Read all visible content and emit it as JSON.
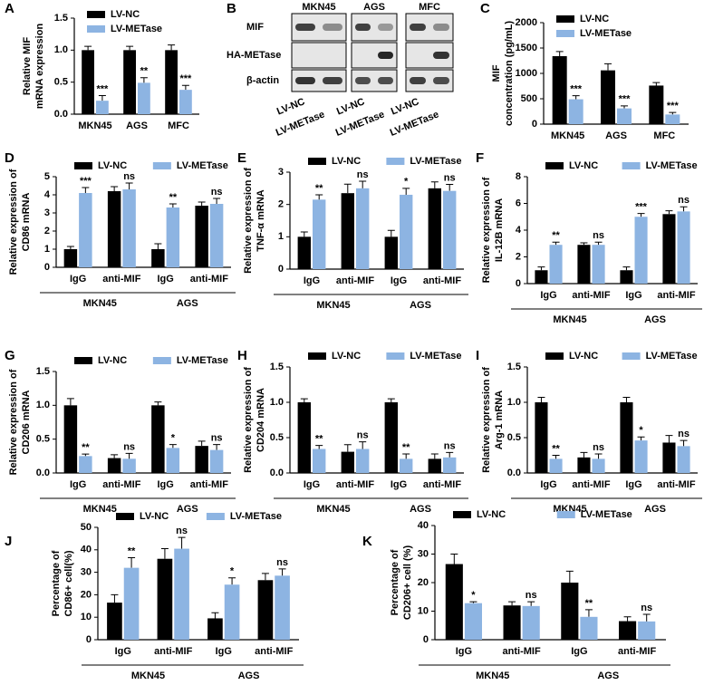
{
  "blot": {
    "label": "B",
    "proteins": [
      "MIF",
      "HA-METase",
      "β-actin"
    ],
    "cell_lines": [
      "MKN45",
      "AGS",
      "MFC"
    ],
    "lanes": [
      "LV-NC",
      "LV-METase"
    ]
  },
  "chart_data": [
    {
      "type": "bar",
      "label": "A",
      "ylabel": [
        "Relative MIF",
        "mRNA expression"
      ],
      "categories": [
        "MKN45",
        "AGS",
        "MFC"
      ],
      "legend": "upper left",
      "series": [
        {
          "name": "LV-NC",
          "color": "#000000",
          "values": [
            1.0,
            1.0,
            1.0
          ],
          "errors": [
            0.06,
            0.06,
            0.08
          ]
        },
        {
          "name": "LV-METase",
          "color": "#8db4e2",
          "values": [
            0.21,
            0.49,
            0.38
          ],
          "errors": [
            0.08,
            0.08,
            0.07
          ]
        }
      ],
      "annotations": [
        "***",
        "**",
        "***"
      ],
      "ylim": [
        0,
        1.5
      ],
      "yticks": [
        {
          "value": 0,
          "label": "0.0"
        },
        0.5,
        {
          "value": 1,
          "label": "1.0"
        },
        1.5
      ]
    },
    {
      "type": "bar",
      "label": "C",
      "ylabel": [
        "MIF",
        "concentration (pg/mL)"
      ],
      "categories": [
        "MKN45",
        "AGS",
        "MFC"
      ],
      "legend": "upper left",
      "series": [
        {
          "name": "LV-NC",
          "color": "#000000",
          "values": [
            1340,
            1060,
            760
          ],
          "errors": [
            90,
            130,
            60
          ]
        },
        {
          "name": "LV-METase",
          "color": "#8db4e2",
          "values": [
            490,
            310,
            190
          ],
          "errors": [
            70,
            50,
            40
          ]
        }
      ],
      "annotations": [
        "***",
        "***",
        "***"
      ],
      "ylim": [
        0,
        2000
      ],
      "yticks": [
        0,
        500,
        1000,
        1500,
        2000
      ]
    },
    {
      "type": "bar",
      "label": "D",
      "ylabel": [
        "Relative expression of",
        "CD86 mRNA"
      ],
      "categories": [
        "IgG",
        "anti-MIF",
        "IgG",
        "anti-MIF"
      ],
      "groups": [
        "MKN45",
        "AGS"
      ],
      "legend": "top",
      "series": [
        {
          "name": "LV-NC",
          "color": "#000000",
          "values": [
            1.0,
            4.2,
            1.0,
            3.4
          ],
          "errors": [
            0.15,
            0.25,
            0.3,
            0.2
          ]
        },
        {
          "name": "LV-METase",
          "color": "#8db4e2",
          "values": [
            4.1,
            4.3,
            3.3,
            3.5
          ],
          "errors": [
            0.3,
            0.35,
            0.2,
            0.3
          ]
        }
      ],
      "annotations": [
        "***",
        "ns",
        "**",
        "ns"
      ],
      "ylim": [
        0,
        5
      ],
      "yticks": [
        0,
        1,
        2,
        3,
        4,
        5
      ]
    },
    {
      "type": "bar",
      "label": "E",
      "ylabel": [
        "Relative expression of",
        "TNF-α mRNA"
      ],
      "categories": [
        "IgG",
        "anti-MIF",
        "IgG",
        "anti-MIF"
      ],
      "groups": [
        "MKN45",
        "AGS"
      ],
      "legend": "top",
      "series": [
        {
          "name": "LV-NC",
          "color": "#000000",
          "values": [
            1.0,
            2.35,
            1.0,
            2.5
          ],
          "errors": [
            0.15,
            0.28,
            0.2,
            0.2
          ]
        },
        {
          "name": "LV-METase",
          "color": "#8db4e2",
          "values": [
            2.15,
            2.5,
            2.3,
            2.42
          ],
          "errors": [
            0.15,
            0.22,
            0.2,
            0.2
          ]
        }
      ],
      "annotations": [
        "**",
        "ns",
        "*",
        "ns"
      ],
      "ylim": [
        0,
        3
      ],
      "yticks": [
        0,
        1,
        2,
        3
      ]
    },
    {
      "type": "bar",
      "label": "F",
      "ylabel": [
        "Relative expression of",
        "IL-12B mRNA"
      ],
      "categories": [
        "IgG",
        "anti-MIF",
        "IgG",
        "anti-MIF"
      ],
      "groups": [
        "MKN45",
        "AGS"
      ],
      "legend": "top",
      "series": [
        {
          "name": "LV-NC",
          "color": "#000000",
          "values": [
            1.0,
            2.9,
            1.0,
            5.2
          ],
          "errors": [
            0.25,
            0.15,
            0.25,
            0.25
          ]
        },
        {
          "name": "LV-METase",
          "color": "#8db4e2",
          "values": [
            2.9,
            2.9,
            5.0,
            5.4
          ],
          "errors": [
            0.2,
            0.2,
            0.25,
            0.35
          ]
        }
      ],
      "annotations": [
        "**",
        "ns",
        "***",
        "ns"
      ],
      "ylim": [
        0,
        8
      ],
      "yticks": [
        0,
        2,
        4,
        6,
        8
      ]
    },
    {
      "type": "bar",
      "label": "G",
      "ylabel": [
        "Relative expression of",
        "CD206 mRNA"
      ],
      "categories": [
        "IgG",
        "anti-MIF",
        "IgG",
        "anti-MIF"
      ],
      "groups": [
        "MKN45",
        "AGS"
      ],
      "legend": "top",
      "series": [
        {
          "name": "LV-NC",
          "color": "#000000",
          "values": [
            1.0,
            0.22,
            1.0,
            0.4
          ],
          "errors": [
            0.1,
            0.05,
            0.05,
            0.07
          ]
        },
        {
          "name": "LV-METase",
          "color": "#8db4e2",
          "values": [
            0.25,
            0.21,
            0.37,
            0.34
          ],
          "errors": [
            0.03,
            0.08,
            0.05,
            0.08
          ]
        }
      ],
      "annotations": [
        "**",
        "ns",
        "*",
        "ns"
      ],
      "ylim": [
        0,
        1.5
      ],
      "yticks": [
        {
          "value": 0,
          "label": "0.0"
        },
        0.5,
        {
          "value": 1,
          "label": "1.0"
        },
        1.5
      ]
    },
    {
      "type": "bar",
      "label": "H",
      "ylabel": [
        "Relative expression of",
        "CD204 mRNA"
      ],
      "categories": [
        "IgG",
        "anti-MIF",
        "IgG",
        "anti-MIF"
      ],
      "groups": [
        "MKN45",
        "AGS"
      ],
      "legend": "top",
      "series": [
        {
          "name": "LV-NC",
          "color": "#000000",
          "values": [
            1.0,
            0.3,
            1.0,
            0.2
          ],
          "errors": [
            0.05,
            0.1,
            0.05,
            0.07
          ]
        },
        {
          "name": "LV-METase",
          "color": "#8db4e2",
          "values": [
            0.34,
            0.34,
            0.2,
            0.22
          ],
          "errors": [
            0.05,
            0.1,
            0.07,
            0.07
          ]
        }
      ],
      "annotations": [
        "**",
        "ns",
        "**",
        "ns"
      ],
      "ylim": [
        0,
        1.5
      ],
      "yticks": [
        {
          "value": 0,
          "label": "0.0"
        },
        0.5,
        {
          "value": 1,
          "label": "1.0"
        },
        1.5
      ]
    },
    {
      "type": "bar",
      "label": "I",
      "ylabel": [
        "Relative expression of",
        "Arg-1 mRNA"
      ],
      "categories": [
        "IgG",
        "anti-MIF",
        "IgG",
        "anti-MIF"
      ],
      "groups": [
        "MKN45",
        "AGS"
      ],
      "legend": "top",
      "series": [
        {
          "name": "LV-NC",
          "color": "#000000",
          "values": [
            1.0,
            0.22,
            1.0,
            0.43
          ],
          "errors": [
            0.07,
            0.07,
            0.07,
            0.1
          ]
        },
        {
          "name": "LV-METase",
          "color": "#8db4e2",
          "values": [
            0.2,
            0.2,
            0.46,
            0.38
          ],
          "errors": [
            0.05,
            0.07,
            0.05,
            0.08
          ]
        }
      ],
      "annotations": [
        "**",
        "ns",
        "*",
        "ns"
      ],
      "ylim": [
        0,
        1.5
      ],
      "yticks": [
        {
          "value": 0,
          "label": "0.0"
        },
        0.5,
        {
          "value": 1,
          "label": "1.0"
        },
        1.5
      ]
    },
    {
      "type": "bar",
      "label": "J",
      "ylabel": [
        "Percentage of",
        "CD86+ cell(%)"
      ],
      "categories": [
        "IgG",
        "anti-MIF",
        "IgG",
        "anti-MIF"
      ],
      "groups": [
        "MKN45",
        "AGS"
      ],
      "legend": "top",
      "series": [
        {
          "name": "LV-NC",
          "color": "#000000",
          "values": [
            16.5,
            36,
            9.5,
            26.5
          ],
          "errors": [
            3.5,
            4.5,
            2.5,
            3
          ]
        },
        {
          "name": "LV-METase",
          "color": "#8db4e2",
          "values": [
            32,
            40.5,
            24.5,
            28.5
          ],
          "errors": [
            4.5,
            5,
            3,
            3
          ]
        }
      ],
      "annotations": [
        "**",
        "ns",
        "*",
        "ns"
      ],
      "ylim": [
        0,
        50
      ],
      "yticks": [
        0,
        10,
        20,
        30,
        40,
        50
      ]
    },
    {
      "type": "bar",
      "label": "K",
      "ylabel": [
        "Percentage of",
        "CD206+ cell (%)"
      ],
      "categories": [
        "IgG",
        "anti-MIF",
        "IgG",
        "anti-MIF"
      ],
      "groups": [
        "MKN45",
        "AGS"
      ],
      "legend": "top",
      "series": [
        {
          "name": "LV-NC",
          "color": "#000000",
          "values": [
            26.5,
            12,
            20,
            6.5
          ],
          "errors": [
            3.5,
            1.3,
            4,
            1.5
          ]
        },
        {
          "name": "LV-METase",
          "color": "#8db4e2",
          "values": [
            12.8,
            11.8,
            8,
            6.4
          ],
          "errors": [
            0.5,
            1.5,
            2.5,
            2.5
          ]
        }
      ],
      "annotations": [
        "*",
        "ns",
        "**",
        "ns"
      ],
      "ylim": [
        0,
        40
      ],
      "yticks": [
        0,
        10,
        20,
        30,
        40
      ]
    }
  ]
}
